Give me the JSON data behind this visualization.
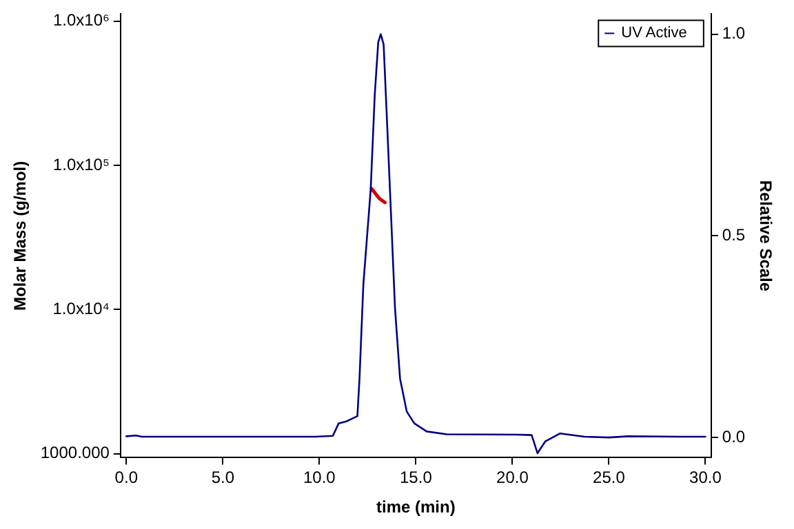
{
  "chart_data": {
    "type": "line",
    "xlabel": "time (min)",
    "ylabel": "Molar Mass (g/mol)",
    "y2label": "Relative Scale",
    "log": "y",
    "xlim": [
      -0.3,
      30.3
    ],
    "xticks": [
      {
        "value": 0,
        "label": "0.0"
      },
      {
        "value": 5,
        "label": "5.0"
      },
      {
        "value": 10,
        "label": "10.0"
      },
      {
        "value": 15,
        "label": "15.0"
      },
      {
        "value": 20,
        "label": "20.0"
      },
      {
        "value": 25,
        "label": "25.0"
      },
      {
        "value": 30,
        "label": "30.0"
      }
    ],
    "ylim": [
      940,
      1120000
    ],
    "yticks": [
      {
        "value": 1000,
        "label": "1000.000"
      },
      {
        "value": 10000,
        "label": "1.0x10⁴"
      },
      {
        "value": 100000,
        "label": "1.0x10⁵"
      },
      {
        "value": 1000000,
        "label": "1.0x10⁶"
      }
    ],
    "y2lim": [
      -0.05,
      1.05
    ],
    "y2ticks": [
      {
        "value": 0,
        "label": "0.0"
      },
      {
        "value": 0.5,
        "label": "0.5"
      },
      {
        "value": 1,
        "label": "1.0"
      }
    ],
    "legend": "top right",
    "grid": false,
    "marker": "none",
    "line_style": "solid",
    "series": [
      {
        "name": "UV Active",
        "color": "#000080",
        "axis": "y2",
        "x": [
          0,
          0.5,
          0.8,
          9.8,
          10.7,
          11.0,
          11.4,
          11.97,
          12.08,
          12.28,
          12.66,
          12.87,
          13.05,
          13.18,
          13.33,
          13.5,
          13.71,
          13.92,
          14.18,
          14.53,
          14.92,
          15.56,
          16.6,
          20.2,
          21.0,
          21.3,
          21.7,
          22.46,
          23.74,
          25,
          26,
          28.7,
          30
        ],
        "values": [
          0.003,
          0.005,
          0.002,
          0.002,
          0.004,
          0.035,
          0.04,
          0.053,
          0.146,
          0.38,
          0.615,
          0.85,
          0.98,
          1.0,
          0.975,
          0.79,
          0.556,
          0.32,
          0.146,
          0.064,
          0.035,
          0.015,
          0.008,
          0.007,
          0.006,
          -0.039,
          -0.01,
          0.01,
          0.002,
          0.0,
          0.003,
          0.002,
          0.002
        ]
      },
      {
        "color": "#cc0000",
        "x": [
          12.7,
          12.9,
          13.1,
          13.4
        ],
        "values": [
          69000,
          64000,
          59000,
          55300
        ]
      }
    ]
  }
}
